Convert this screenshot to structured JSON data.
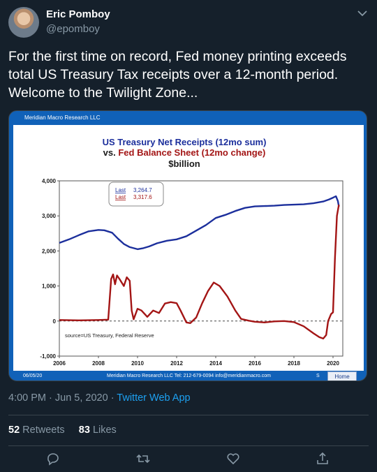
{
  "author": {
    "name": "Eric Pomboy",
    "handle": "@epomboy"
  },
  "tweet": {
    "text": "For the first time on record, Fed money printing exceeds total US Treasury Tax receipts over a 12-month period. Welcome to the Twilight Zone..."
  },
  "card": {
    "header": "Meridian Macro Research LLC",
    "footer_date": "06/05/20",
    "footer_info": "Meridian Macro Research LLC   Tel: 212-679-0094   info@meridianmacro.com",
    "footer_s": "S",
    "home_label": "Home"
  },
  "chart_data": {
    "type": "line",
    "title_line1": "US Treasury Net Receipts (12mo sum)",
    "title_line2_prefix": "vs. ",
    "title_line2": "Fed Balance Sheet (12mo change)",
    "title_line3": "$billion",
    "source": "source=US Treasury, Federal Reserve",
    "legend": [
      {
        "label": "Last",
        "value": "3,264.7",
        "color": "#1c2f9c"
      },
      {
        "label": "Last",
        "value": "3,317.6",
        "color": "#a31515"
      }
    ],
    "xlim": [
      2006,
      2020.5
    ],
    "ylim": [
      -1000,
      4000
    ],
    "x_ticks": [
      "2006",
      "2008",
      "2010",
      "2012",
      "2014",
      "2016",
      "2018",
      "2020"
    ],
    "y_ticks": [
      "4,000",
      "3,000",
      "2,000",
      "1,000",
      "0",
      "-1,000"
    ],
    "series": [
      {
        "color": "#1c2f9c",
        "points": [
          [
            2006.0,
            2230
          ],
          [
            2006.5,
            2330
          ],
          [
            2007.0,
            2450
          ],
          [
            2007.5,
            2560
          ],
          [
            2008.0,
            2600
          ],
          [
            2008.3,
            2590
          ],
          [
            2008.7,
            2520
          ],
          [
            2009.0,
            2350
          ],
          [
            2009.3,
            2200
          ],
          [
            2009.6,
            2110
          ],
          [
            2010.0,
            2050
          ],
          [
            2010.3,
            2080
          ],
          [
            2010.6,
            2130
          ],
          [
            2011.0,
            2220
          ],
          [
            2011.5,
            2290
          ],
          [
            2012.0,
            2330
          ],
          [
            2012.5,
            2420
          ],
          [
            2013.0,
            2580
          ],
          [
            2013.5,
            2740
          ],
          [
            2014.0,
            2940
          ],
          [
            2014.5,
            3030
          ],
          [
            2015.0,
            3140
          ],
          [
            2015.5,
            3230
          ],
          [
            2016.0,
            3270
          ],
          [
            2016.5,
            3280
          ],
          [
            2017.0,
            3290
          ],
          [
            2017.5,
            3310
          ],
          [
            2018.0,
            3320
          ],
          [
            2018.5,
            3330
          ],
          [
            2019.0,
            3360
          ],
          [
            2019.5,
            3410
          ],
          [
            2019.8,
            3470
          ],
          [
            2020.0,
            3520
          ],
          [
            2020.15,
            3560
          ],
          [
            2020.25,
            3420
          ],
          [
            2020.3,
            3265
          ]
        ]
      },
      {
        "color": "#a31515",
        "points": [
          [
            2006.0,
            30
          ],
          [
            2007.0,
            20
          ],
          [
            2008.0,
            30
          ],
          [
            2008.5,
            40
          ],
          [
            2008.65,
            1200
          ],
          [
            2008.75,
            1330
          ],
          [
            2008.85,
            1050
          ],
          [
            2008.95,
            1300
          ],
          [
            2009.1,
            1180
          ],
          [
            2009.3,
            1000
          ],
          [
            2009.45,
            1250
          ],
          [
            2009.6,
            1150
          ],
          [
            2009.7,
            300
          ],
          [
            2009.8,
            50
          ],
          [
            2010.0,
            350
          ],
          [
            2010.2,
            300
          ],
          [
            2010.5,
            120
          ],
          [
            2010.8,
            300
          ],
          [
            2011.1,
            230
          ],
          [
            2011.4,
            500
          ],
          [
            2011.7,
            540
          ],
          [
            2012.0,
            510
          ],
          [
            2012.2,
            300
          ],
          [
            2012.5,
            -40
          ],
          [
            2012.7,
            -60
          ],
          [
            2013.0,
            100
          ],
          [
            2013.3,
            500
          ],
          [
            2013.6,
            850
          ],
          [
            2013.9,
            1100
          ],
          [
            2014.2,
            1000
          ],
          [
            2014.6,
            700
          ],
          [
            2015.0,
            300
          ],
          [
            2015.3,
            60
          ],
          [
            2015.7,
            10
          ],
          [
            2016.0,
            -20
          ],
          [
            2016.5,
            -40
          ],
          [
            2017.0,
            -10
          ],
          [
            2017.5,
            0
          ],
          [
            2018.0,
            -30
          ],
          [
            2018.5,
            -150
          ],
          [
            2019.0,
            -350
          ],
          [
            2019.3,
            -460
          ],
          [
            2019.5,
            -500
          ],
          [
            2019.65,
            -400
          ],
          [
            2019.75,
            0
          ],
          [
            2019.9,
            200
          ],
          [
            2020.0,
            250
          ],
          [
            2020.1,
            1800
          ],
          [
            2020.2,
            3000
          ],
          [
            2020.3,
            3318
          ]
        ]
      }
    ]
  },
  "timestamp": "4:00 PM · Jun 5, 2020 · ",
  "source_app": "Twitter Web App",
  "stats": {
    "retweets_count": "52",
    "retweets_label": "Retweets",
    "likes_count": "83",
    "likes_label": "Likes"
  }
}
